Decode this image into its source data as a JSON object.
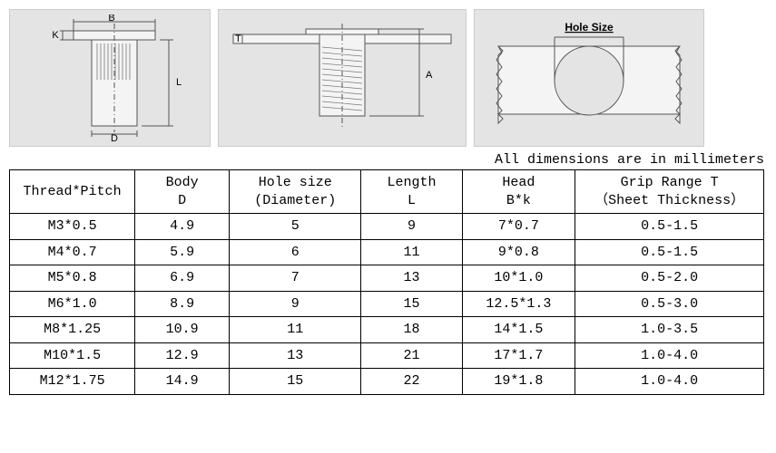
{
  "note": "All dimensions are in millimeters",
  "diagram_labels": {
    "B": "B",
    "K": "K",
    "D": "D",
    "L": "L",
    "T": "T",
    "A": "A",
    "hole_size": "Hole Size"
  },
  "diagram_style": {
    "panel_bg": "#e4e4e4",
    "stroke": "#555555",
    "hatch": "#777777",
    "fill": "#f4f4f4"
  },
  "table": {
    "columns": [
      "Thread*Pitch",
      "Body\nD",
      "Hole size\n(Diameter)",
      "Length\nL",
      "Head\nB*k",
      "Grip Range T\n（Sheet Thickness）"
    ],
    "rows": [
      [
        "M3*0.5",
        "4.9",
        "5",
        "9",
        "7*0.7",
        "0.5-1.5"
      ],
      [
        "M4*0.7",
        "5.9",
        "6",
        "11",
        "9*0.8",
        "0.5-1.5"
      ],
      [
        "M5*0.8",
        "6.9",
        "7",
        "13",
        "10*1.0",
        "0.5-2.0"
      ],
      [
        "M6*1.0",
        "8.9",
        "9",
        "15",
        "12.5*1.3",
        "0.5-3.0"
      ],
      [
        "M8*1.25",
        "10.9",
        "11",
        "18",
        "14*1.5",
        "1.0-3.5"
      ],
      [
        "M10*1.5",
        "12.9",
        "13",
        "21",
        "17*1.7",
        "1.0-4.0"
      ],
      [
        "M12*1.75",
        "14.9",
        "15",
        "22",
        "19*1.8",
        "1.0-4.0"
      ]
    ]
  }
}
